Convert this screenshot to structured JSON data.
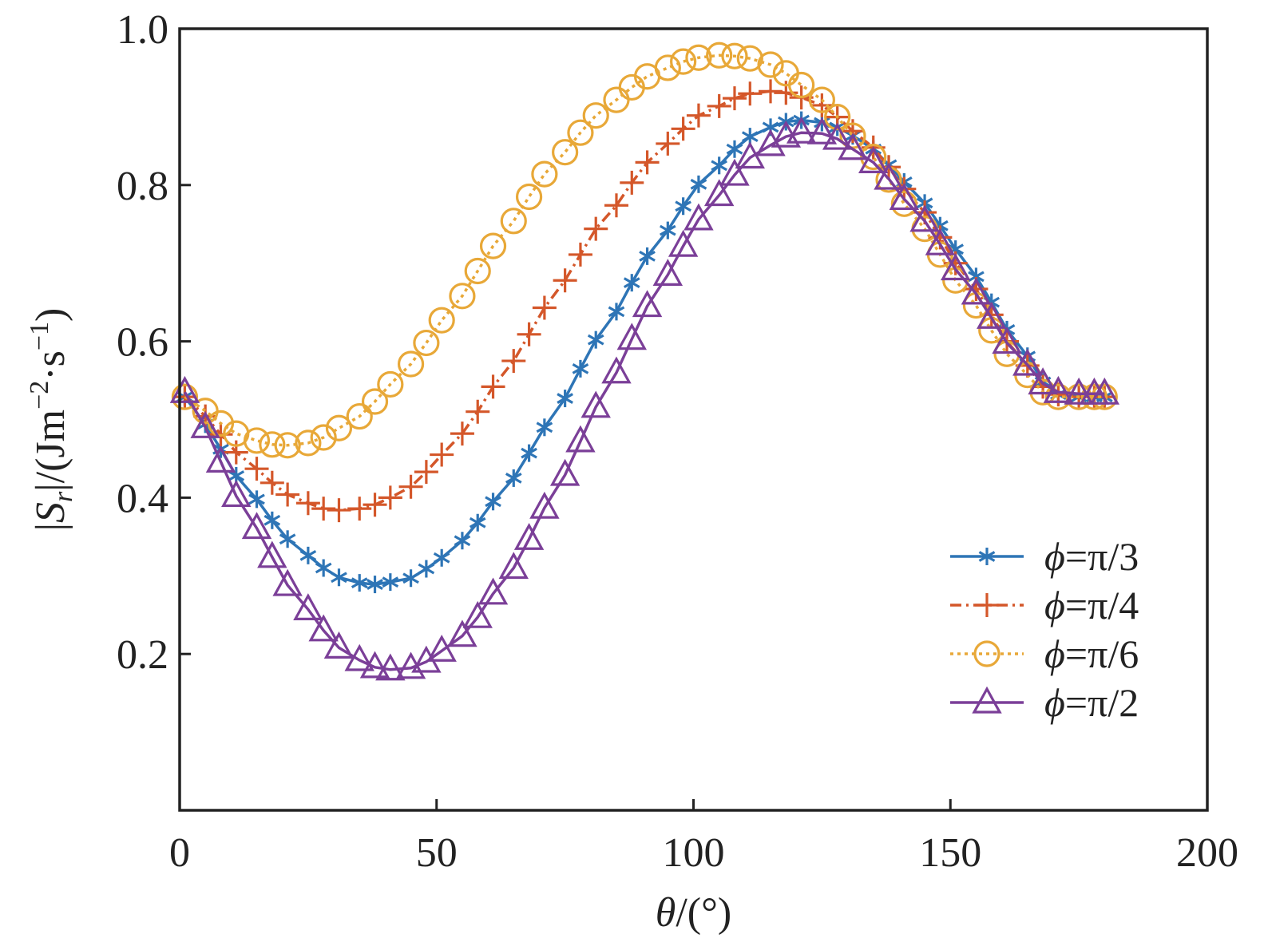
{
  "chart_data": {
    "type": "line",
    "xlabel": {
      "var": "θ",
      "rest": "/(°)"
    },
    "ylabel": {
      "prefix": "|",
      "var": "S",
      "sub": "r",
      "mid": "|/(Jm",
      "sup1": "−2",
      "dot": "·s",
      "sup2": "−1",
      "suffix": ")"
    },
    "xlim": [
      0,
      200
    ],
    "ylim": [
      0,
      1.0
    ],
    "xticks": [
      0,
      50,
      100,
      150,
      200
    ],
    "yticks": [
      0.2,
      0.4,
      0.6,
      0.8,
      1.0
    ],
    "x_tick_labels": [
      "0",
      "50",
      "100",
      "150",
      "200"
    ],
    "y_tick_labels": [
      "0.2",
      "0.4",
      "0.6",
      "0.8",
      "1.0"
    ],
    "grid": false,
    "legend_position": "bottom-right",
    "x": [
      1,
      5,
      8,
      11,
      15,
      18,
      21,
      25,
      28,
      31,
      35,
      38,
      41,
      45,
      48,
      51,
      55,
      58,
      61,
      65,
      68,
      71,
      75,
      78,
      81,
      85,
      88,
      91,
      95,
      98,
      101,
      105,
      108,
      111,
      115,
      118,
      121,
      125,
      128,
      131,
      135,
      138,
      141,
      145,
      148,
      151,
      155,
      158,
      161,
      165,
      168,
      171,
      175,
      178,
      180
    ],
    "series": [
      {
        "name": "ϕ=π/3",
        "var": "ϕ",
        "rest": "=π/3",
        "color": "#2e75b6",
        "marker": "asterisk",
        "dash": "solid",
        "values": [
          0.529,
          0.494,
          0.462,
          0.428,
          0.398,
          0.371,
          0.347,
          0.326,
          0.31,
          0.298,
          0.291,
          0.289,
          0.292,
          0.297,
          0.309,
          0.323,
          0.345,
          0.368,
          0.395,
          0.425,
          0.457,
          0.49,
          0.527,
          0.565,
          0.602,
          0.638,
          0.675,
          0.709,
          0.742,
          0.773,
          0.801,
          0.825,
          0.846,
          0.862,
          0.874,
          0.881,
          0.883,
          0.88,
          0.874,
          0.863,
          0.846,
          0.826,
          0.804,
          0.777,
          0.748,
          0.718,
          0.683,
          0.65,
          0.615,
          0.581,
          0.548,
          0.532,
          0.529,
          0.529,
          0.529
        ]
      },
      {
        "name": "ϕ=π/4",
        "var": "ϕ",
        "rest": "=π/4",
        "color": "#d4572a",
        "marker": "plus",
        "dash": "dashdot",
        "values": [
          0.529,
          0.504,
          0.481,
          0.458,
          0.437,
          0.419,
          0.404,
          0.393,
          0.386,
          0.384,
          0.386,
          0.391,
          0.4,
          0.414,
          0.433,
          0.455,
          0.482,
          0.51,
          0.542,
          0.575,
          0.609,
          0.643,
          0.678,
          0.711,
          0.744,
          0.774,
          0.803,
          0.829,
          0.853,
          0.872,
          0.889,
          0.901,
          0.911,
          0.917,
          0.92,
          0.918,
          0.912,
          0.902,
          0.887,
          0.869,
          0.848,
          0.823,
          0.795,
          0.765,
          0.733,
          0.7,
          0.667,
          0.634,
          0.6,
          0.569,
          0.542,
          0.532,
          0.529,
          0.529,
          0.529
        ]
      },
      {
        "name": "ϕ=π/6",
        "var": "ϕ",
        "rest": "=π/6",
        "color": "#e8a838",
        "marker": "circle",
        "dash": "dotted",
        "values": [
          0.529,
          0.511,
          0.495,
          0.482,
          0.473,
          0.468,
          0.467,
          0.47,
          0.477,
          0.489,
          0.504,
          0.523,
          0.545,
          0.571,
          0.598,
          0.627,
          0.658,
          0.69,
          0.722,
          0.754,
          0.785,
          0.814,
          0.842,
          0.867,
          0.889,
          0.909,
          0.925,
          0.939,
          0.95,
          0.958,
          0.963,
          0.966,
          0.965,
          0.962,
          0.954,
          0.943,
          0.928,
          0.909,
          0.887,
          0.863,
          0.836,
          0.807,
          0.776,
          0.744,
          0.711,
          0.678,
          0.646,
          0.614,
          0.584,
          0.557,
          0.535,
          0.529,
          0.529,
          0.529,
          0.529
        ]
      },
      {
        "name": "ϕ=π/2",
        "var": "ϕ",
        "rest": "=π/2",
        "color": "#7b3f98",
        "marker": "triangle",
        "dash": "solid",
        "values": [
          0.535,
          0.49,
          0.446,
          0.402,
          0.361,
          0.324,
          0.288,
          0.257,
          0.23,
          0.208,
          0.192,
          0.183,
          0.18,
          0.182,
          0.19,
          0.204,
          0.223,
          0.247,
          0.277,
          0.31,
          0.347,
          0.387,
          0.429,
          0.472,
          0.516,
          0.56,
          0.603,
          0.645,
          0.685,
          0.722,
          0.756,
          0.787,
          0.813,
          0.835,
          0.851,
          0.862,
          0.867,
          0.866,
          0.859,
          0.846,
          0.829,
          0.808,
          0.782,
          0.754,
          0.724,
          0.692,
          0.661,
          0.63,
          0.598,
          0.57,
          0.546,
          0.535,
          0.533,
          0.533,
          0.533
        ]
      }
    ]
  }
}
